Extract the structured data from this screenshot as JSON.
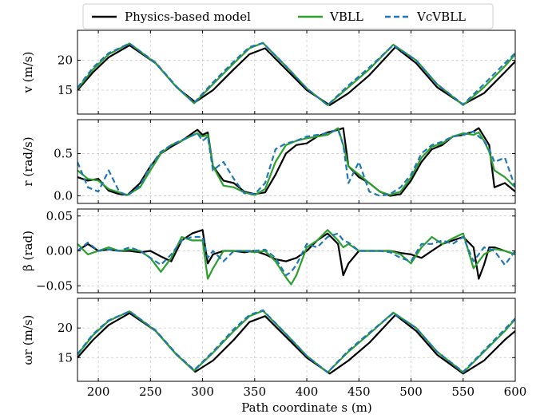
{
  "legend": {
    "placement": "top-center",
    "entries": [
      {
        "key": "physics",
        "label": "Physics-based model",
        "color": "#000000",
        "dash": "solid"
      },
      {
        "key": "vbll",
        "label": "VBLL",
        "color": "#2ca02c",
        "dash": "solid"
      },
      {
        "key": "vcvbll",
        "label": "VcVBLL",
        "color": "#1f77b4",
        "dash": "dashed"
      }
    ]
  },
  "xlabel": "Path coordinate s (m)",
  "chart_data": [
    {
      "type": "line",
      "ylabel": "v (m/s)",
      "xlim": [
        180,
        600
      ],
      "ylim": [
        11,
        25
      ],
      "xticks": [
        "200",
        "250",
        "300",
        "350",
        "400",
        "450",
        "500",
        "550",
        "600"
      ],
      "yticks": [
        {
          "v": 15,
          "label": "15"
        },
        {
          "v": 20,
          "label": "20"
        }
      ],
      "grid": true,
      "series": [
        {
          "key": "physics",
          "x": [
            180,
            195,
            210,
            230,
            255,
            275,
            293,
            310,
            330,
            345,
            360,
            380,
            400,
            422,
            440,
            460,
            485,
            505,
            525,
            550,
            570,
            590,
            600
          ],
          "y": [
            15.0,
            18.0,
            20.5,
            22.5,
            19.5,
            15.5,
            13.0,
            15.0,
            18.5,
            21.0,
            22.0,
            18.5,
            15.0,
            12.5,
            14.5,
            17.5,
            22.2,
            19.5,
            15.5,
            12.6,
            14.5,
            18.0,
            19.8
          ]
        },
        {
          "key": "vbll",
          "x": [
            180,
            195,
            210,
            230,
            255,
            275,
            292,
            310,
            330,
            345,
            358,
            380,
            400,
            420,
            440,
            460,
            483,
            505,
            525,
            550,
            570,
            590,
            600
          ],
          "y": [
            15.2,
            18.5,
            21.0,
            22.8,
            19.5,
            15.5,
            12.8,
            16.0,
            19.5,
            22.0,
            22.9,
            19.0,
            15.3,
            12.5,
            15.5,
            18.5,
            22.6,
            20.0,
            16.0,
            12.5,
            15.5,
            19.0,
            21.0
          ]
        },
        {
          "key": "vcvbll",
          "x": [
            180,
            195,
            210,
            230,
            255,
            275,
            292,
            310,
            330,
            345,
            358,
            380,
            400,
            420,
            440,
            460,
            483,
            505,
            525,
            550,
            570,
            590,
            600
          ],
          "y": [
            15.4,
            18.8,
            21.2,
            22.8,
            19.6,
            15.6,
            12.9,
            16.3,
            19.8,
            22.2,
            22.9,
            19.0,
            15.3,
            12.5,
            15.8,
            18.8,
            22.5,
            20.0,
            16.0,
            12.6,
            16.0,
            19.5,
            21.2
          ]
        }
      ]
    },
    {
      "type": "line",
      "ylabel": "r (rad/s)",
      "xlim": [
        180,
        600
      ],
      "ylim": [
        -0.09,
        0.9
      ],
      "xticks": [
        "200",
        "250",
        "300",
        "350",
        "400",
        "450",
        "500",
        "550",
        "600"
      ],
      "yticks": [
        {
          "v": 0.0,
          "label": "0.0"
        },
        {
          "v": 0.5,
          "label": "0.5"
        }
      ],
      "grid": true,
      "series": [
        {
          "key": "physics",
          "x": [
            180,
            190,
            200,
            210,
            220,
            228,
            240,
            250,
            260,
            270,
            280,
            288,
            295,
            300,
            305,
            310,
            320,
            330,
            340,
            350,
            360,
            370,
            380,
            390,
            400,
            410,
            420,
            430,
            435,
            440,
            450,
            460,
            470,
            480,
            490,
            500,
            510,
            520,
            530,
            540,
            550,
            560,
            565,
            570,
            575,
            580,
            590,
            600
          ],
          "y": [
            0.22,
            0.18,
            0.2,
            0.06,
            0.02,
            0.01,
            0.15,
            0.35,
            0.5,
            0.58,
            0.65,
            0.72,
            0.78,
            0.72,
            0.75,
            0.35,
            0.18,
            0.15,
            0.05,
            0.02,
            0.04,
            0.25,
            0.5,
            0.6,
            0.62,
            0.7,
            0.75,
            0.78,
            0.8,
            0.35,
            0.22,
            0.15,
            0.05,
            0.0,
            0.02,
            0.18,
            0.4,
            0.55,
            0.6,
            0.7,
            0.72,
            0.76,
            0.8,
            0.7,
            0.6,
            0.1,
            0.15,
            0.05
          ]
        },
        {
          "key": "vbll",
          "x": [
            180,
            190,
            200,
            210,
            220,
            228,
            240,
            250,
            260,
            270,
            280,
            288,
            295,
            300,
            305,
            310,
            320,
            330,
            340,
            350,
            360,
            370,
            380,
            390,
            400,
            410,
            420,
            430,
            435,
            440,
            450,
            460,
            470,
            480,
            490,
            500,
            510,
            520,
            530,
            540,
            550,
            560,
            565,
            570,
            575,
            580,
            590,
            600
          ],
          "y": [
            0.3,
            0.2,
            0.18,
            0.08,
            0.04,
            0.01,
            0.1,
            0.3,
            0.5,
            0.6,
            0.65,
            0.7,
            0.74,
            0.7,
            0.72,
            0.35,
            0.12,
            0.1,
            0.04,
            0.01,
            0.08,
            0.4,
            0.6,
            0.65,
            0.68,
            0.7,
            0.72,
            0.8,
            0.6,
            0.35,
            0.25,
            0.15,
            0.05,
            0.01,
            0.05,
            0.22,
            0.45,
            0.58,
            0.62,
            0.7,
            0.74,
            0.72,
            0.75,
            0.65,
            0.52,
            0.3,
            0.22,
            0.1
          ]
        },
        {
          "key": "vcvbll",
          "x": [
            180,
            190,
            200,
            210,
            220,
            228,
            240,
            250,
            260,
            270,
            280,
            288,
            295,
            300,
            305,
            310,
            320,
            330,
            340,
            350,
            360,
            370,
            380,
            390,
            400,
            410,
            420,
            430,
            435,
            440,
            450,
            460,
            470,
            480,
            490,
            500,
            510,
            520,
            530,
            540,
            550,
            560,
            565,
            570,
            575,
            580,
            590,
            600
          ],
          "y": [
            0.4,
            0.1,
            0.05,
            0.3,
            0.05,
            0.0,
            0.12,
            0.35,
            0.52,
            0.6,
            0.66,
            0.7,
            0.74,
            0.65,
            0.7,
            0.3,
            0.4,
            0.2,
            0.03,
            0.02,
            0.15,
            0.55,
            0.62,
            0.65,
            0.7,
            0.72,
            0.74,
            0.78,
            0.6,
            0.15,
            0.4,
            0.05,
            0.0,
            0.02,
            0.1,
            0.25,
            0.5,
            0.6,
            0.64,
            0.7,
            0.72,
            0.76,
            0.7,
            0.65,
            0.55,
            0.4,
            0.45,
            0.1
          ]
        }
      ]
    },
    {
      "type": "line",
      "ylabel": "β (rad)",
      "xlim": [
        180,
        600
      ],
      "ylim": [
        -0.06,
        0.06
      ],
      "xticks": [
        "200",
        "250",
        "300",
        "350",
        "400",
        "450",
        "500",
        "550",
        "600"
      ],
      "yticks": [
        {
          "v": -0.05,
          "label": "−0.05"
        },
        {
          "v": 0.0,
          "label": "0.00"
        },
        {
          "v": 0.05,
          "label": "0.05"
        }
      ],
      "grid": true,
      "series": [
        {
          "key": "physics",
          "x": [
            180,
            190,
            200,
            210,
            220,
            230,
            240,
            250,
            260,
            270,
            280,
            290,
            300,
            305,
            310,
            320,
            330,
            340,
            350,
            360,
            370,
            380,
            390,
            400,
            410,
            420,
            430,
            435,
            440,
            450,
            460,
            470,
            480,
            490,
            500,
            510,
            520,
            530,
            540,
            550,
            560,
            565,
            570,
            575,
            580,
            590,
            600
          ],
          "y": [
            0.0,
            0.01,
            0.0,
            0.002,
            0.0,
            0.0,
            -0.002,
            0.0,
            -0.008,
            -0.015,
            0.015,
            0.025,
            0.03,
            -0.018,
            -0.005,
            0.0,
            0.0,
            -0.002,
            0.0,
            -0.005,
            -0.012,
            -0.015,
            -0.01,
            0.0,
            0.015,
            0.025,
            0.01,
            -0.035,
            -0.018,
            0.0,
            0.0,
            0.0,
            0.0,
            -0.003,
            -0.005,
            -0.01,
            0.0,
            0.01,
            0.015,
            0.02,
            0.005,
            -0.04,
            -0.02,
            0.005,
            0.005,
            0.0,
            -0.005
          ]
        },
        {
          "key": "vbll",
          "x": [
            180,
            190,
            200,
            210,
            220,
            230,
            240,
            250,
            260,
            270,
            280,
            290,
            300,
            305,
            310,
            320,
            330,
            340,
            350,
            360,
            370,
            380,
            385,
            390,
            400,
            410,
            420,
            430,
            435,
            440,
            450,
            460,
            470,
            480,
            490,
            500,
            510,
            520,
            530,
            540,
            550,
            560,
            570,
            580,
            590,
            600
          ],
          "y": [
            0.01,
            -0.005,
            0.0,
            0.005,
            0.0,
            0.002,
            0.0,
            -0.01,
            -0.03,
            -0.01,
            0.02,
            0.015,
            0.015,
            -0.04,
            -0.025,
            0.0,
            0.0,
            0.0,
            -0.002,
            0.0,
            -0.015,
            -0.038,
            -0.048,
            -0.035,
            0.005,
            0.015,
            0.03,
            0.015,
            0.005,
            0.01,
            0.0,
            0.0,
            0.0,
            0.0,
            -0.005,
            -0.018,
            0.005,
            0.02,
            0.01,
            0.018,
            0.025,
            -0.025,
            -0.005,
            0.003,
            0.0,
            -0.005
          ]
        },
        {
          "key": "vcvbll",
          "x": [
            180,
            190,
            200,
            210,
            220,
            230,
            240,
            250,
            260,
            270,
            280,
            290,
            300,
            305,
            310,
            320,
            330,
            340,
            350,
            360,
            370,
            380,
            385,
            390,
            400,
            410,
            420,
            430,
            435,
            440,
            450,
            460,
            470,
            480,
            490,
            500,
            510,
            520,
            530,
            540,
            550,
            560,
            570,
            580,
            590,
            600
          ],
          "y": [
            0.0,
            0.012,
            0.0,
            0.002,
            0.0,
            0.005,
            0.0,
            -0.01,
            -0.02,
            -0.005,
            0.015,
            0.02,
            0.02,
            -0.01,
            0.0,
            -0.015,
            0.0,
            0.0,
            0.0,
            0.002,
            -0.01,
            -0.035,
            -0.03,
            -0.02,
            0.01,
            0.005,
            0.02,
            0.025,
            0.015,
            0.012,
            0.0,
            0.0,
            0.0,
            -0.002,
            -0.01,
            -0.015,
            0.01,
            0.01,
            0.015,
            0.01,
            0.02,
            -0.015,
            0.005,
            0.0,
            -0.02,
            0.0
          ]
        }
      ]
    },
    {
      "type": "line",
      "ylabel": "ωr (m/s)",
      "xlim": [
        180,
        600
      ],
      "ylim": [
        11,
        25
      ],
      "xticks": [
        "200",
        "250",
        "300",
        "350",
        "400",
        "450",
        "500",
        "550",
        "600"
      ],
      "yticks": [
        {
          "v": 15,
          "label": "15"
        },
        {
          "v": 20,
          "label": "20"
        }
      ],
      "grid": true,
      "series": [
        {
          "key": "physics",
          "x": [
            180,
            195,
            210,
            230,
            255,
            275,
            293,
            310,
            330,
            345,
            360,
            380,
            400,
            422,
            440,
            460,
            485,
            505,
            525,
            550,
            570,
            590,
            600
          ],
          "y": [
            15.0,
            18.0,
            20.5,
            22.5,
            19.5,
            15.5,
            12.6,
            14.5,
            18.0,
            21.0,
            22.0,
            18.5,
            15.0,
            12.3,
            14.5,
            17.5,
            22.2,
            19.5,
            15.5,
            12.3,
            14.5,
            18.0,
            19.5
          ]
        },
        {
          "key": "vbll",
          "x": [
            180,
            195,
            210,
            230,
            255,
            275,
            292,
            310,
            330,
            345,
            358,
            380,
            400,
            420,
            440,
            460,
            483,
            505,
            525,
            550,
            570,
            590,
            600
          ],
          "y": [
            15.5,
            18.8,
            21.2,
            22.8,
            19.5,
            15.5,
            12.8,
            15.8,
            19.5,
            22.0,
            22.9,
            19.0,
            15.3,
            12.5,
            16.0,
            19.0,
            22.6,
            20.0,
            16.0,
            12.5,
            16.0,
            19.5,
            21.5
          ]
        },
        {
          "key": "vcvbll",
          "x": [
            180,
            195,
            210,
            230,
            255,
            275,
            292,
            310,
            330,
            345,
            358,
            380,
            400,
            420,
            440,
            460,
            483,
            505,
            525,
            550,
            570,
            590,
            600
          ],
          "y": [
            15.6,
            19.0,
            21.3,
            22.8,
            19.6,
            15.6,
            12.9,
            16.0,
            19.8,
            22.2,
            23.0,
            19.0,
            15.3,
            12.5,
            16.2,
            19.2,
            22.5,
            20.0,
            16.0,
            12.6,
            16.2,
            19.8,
            21.6
          ]
        }
      ]
    }
  ]
}
